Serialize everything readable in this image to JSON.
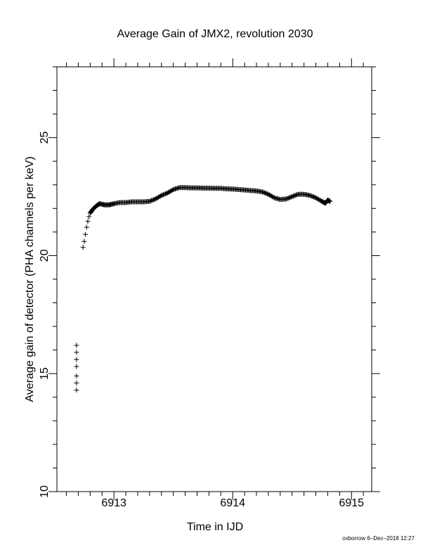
{
  "chart_data": {
    "type": "scatter",
    "title": "Average Gain of JMX2, revolution 2030",
    "xlabel": "Time in IJD",
    "ylabel": "Average gain of detector (PHA channels per keV)",
    "xlim": [
      6912.52,
      6915.17
    ],
    "ylim": [
      10,
      28
    ],
    "x_major_ticks": [
      6913,
      6914,
      6915
    ],
    "x_minor_step": 0.1,
    "y_major_ticks": [
      10,
      15,
      20,
      25
    ],
    "y_minor_step": 1,
    "x_tick_labels": [
      "6913",
      "6914",
      "6915"
    ],
    "y_tick_labels": [
      "10",
      "15",
      "20",
      "25"
    ],
    "marker": "plus",
    "grid": false,
    "series": [
      {
        "points": [
          [
            6912.685,
            14.3
          ],
          [
            6912.685,
            14.6
          ],
          [
            6912.685,
            14.9
          ],
          [
            6912.685,
            15.3
          ],
          [
            6912.685,
            15.6
          ],
          [
            6912.685,
            15.9
          ],
          [
            6912.685,
            16.2
          ],
          [
            6912.74,
            20.35
          ],
          [
            6912.75,
            20.6
          ],
          [
            6912.76,
            20.9
          ],
          [
            6912.77,
            21.2
          ],
          [
            6912.78,
            21.45
          ],
          [
            6912.79,
            21.65
          ],
          [
            6912.8,
            21.8
          ],
          [
            6912.82,
            21.95
          ],
          [
            6912.85,
            22.1
          ],
          [
            6912.88,
            22.2
          ],
          [
            6912.92,
            22.15
          ],
          [
            6912.96,
            22.15
          ],
          [
            6913.0,
            22.2
          ],
          [
            6913.05,
            22.25
          ],
          [
            6913.1,
            22.25
          ],
          [
            6913.15,
            22.28
          ],
          [
            6913.2,
            22.28
          ],
          [
            6913.25,
            22.28
          ],
          [
            6913.3,
            22.3
          ],
          [
            6913.35,
            22.4
          ],
          [
            6913.4,
            22.55
          ],
          [
            6913.45,
            22.65
          ],
          [
            6913.5,
            22.8
          ],
          [
            6913.55,
            22.88
          ],
          [
            6913.6,
            22.88
          ],
          [
            6913.65,
            22.87
          ],
          [
            6913.7,
            22.87
          ],
          [
            6913.75,
            22.86
          ],
          [
            6913.8,
            22.86
          ],
          [
            6913.85,
            22.85
          ],
          [
            6913.9,
            22.85
          ],
          [
            6913.95,
            22.83
          ],
          [
            6914.0,
            22.82
          ],
          [
            6914.05,
            22.8
          ],
          [
            6914.1,
            22.78
          ],
          [
            6914.15,
            22.76
          ],
          [
            6914.2,
            22.74
          ],
          [
            6914.25,
            22.7
          ],
          [
            6914.3,
            22.6
          ],
          [
            6914.35,
            22.45
          ],
          [
            6914.4,
            22.38
          ],
          [
            6914.45,
            22.4
          ],
          [
            6914.5,
            22.5
          ],
          [
            6914.55,
            22.6
          ],
          [
            6914.6,
            22.6
          ],
          [
            6914.65,
            22.55
          ],
          [
            6914.7,
            22.45
          ],
          [
            6914.75,
            22.3
          ],
          [
            6914.78,
            22.22
          ],
          [
            6914.8,
            22.35
          ],
          [
            6914.82,
            22.3
          ]
        ]
      }
    ]
  },
  "footer": {
    "credit": "oxborrow  6–Dec–2018 12:27"
  }
}
